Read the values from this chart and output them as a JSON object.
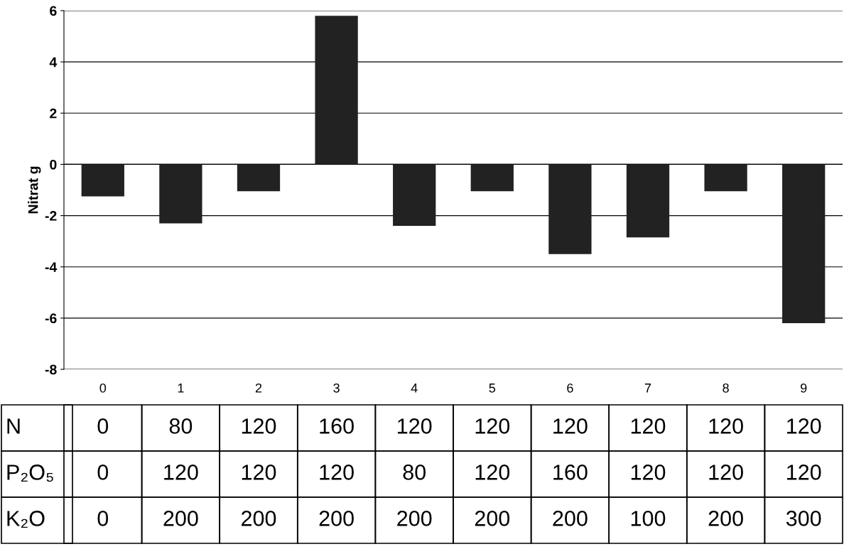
{
  "chart_data": {
    "type": "bar",
    "ylabel": "Nitrat g",
    "categories": [
      "0",
      "1",
      "2",
      "3",
      "4",
      "5",
      "6",
      "7",
      "8",
      "9"
    ],
    "values": [
      -1.25,
      -2.3,
      -1.05,
      5.8,
      -2.4,
      -1.05,
      -3.5,
      -2.85,
      -1.05,
      -6.2
    ],
    "color": "#222222",
    "ylim": [
      -8,
      6
    ],
    "yticks": [
      -8,
      -6,
      -4,
      -2,
      0,
      2,
      4,
      6
    ],
    "grid": "y",
    "annotations": [
      "N",
      "0",
      "80",
      "120",
      "160",
      "120",
      "120",
      "120",
      "120",
      "120",
      "120",
      "P₂O₅",
      "0",
      "120",
      "120",
      "120",
      "80",
      "120",
      "160",
      "120",
      "120",
      "120",
      "K₂O",
      "0",
      "200",
      "200",
      "200",
      "200",
      "200",
      "200",
      "100",
      "200",
      "300"
    ]
  }
}
